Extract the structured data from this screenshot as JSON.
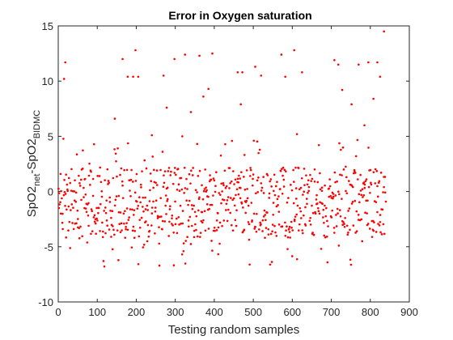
{
  "chart_data": {
    "type": "scatter",
    "title": "Error in Oxygen saturation",
    "xlabel": "Testing random samples",
    "ylabel_main": "SpO2",
    "ylabel_sub1": "net",
    "ylabel_mid": "-SpO2",
    "ylabel_sub2": "BIDMC",
    "xlim": [
      0,
      900
    ],
    "ylim": [
      -10,
      15
    ],
    "xticks": [
      0,
      100,
      200,
      300,
      400,
      500,
      600,
      700,
      800,
      900
    ],
    "yticks": [
      -10,
      -5,
      0,
      5,
      10,
      15
    ],
    "grid": false,
    "marker_color": "#ff0000",
    "outliers": {
      "x": [
        15,
        18,
        165,
        178,
        192,
        198,
        205,
        270,
        278,
        298,
        325,
        340,
        362,
        372,
        385,
        395,
        460,
        468,
        472,
        505,
        520,
        572,
        582,
        605,
        612,
        625,
        708,
        718,
        728,
        752,
        770,
        785,
        795,
        808,
        818,
        825,
        835,
        145,
        240,
        318
      ],
      "y": [
        10.2,
        11.7,
        12.0,
        10.4,
        10.4,
        12.8,
        10.4,
        10.5,
        7.6,
        12.0,
        12.4,
        7.2,
        12.3,
        8.6,
        9.3,
        12.5,
        10.8,
        7.9,
        10.8,
        11.3,
        10.5,
        12.4,
        10.4,
        12.8,
        5.2,
        10.8,
        11.9,
        11.5,
        9.2,
        7.9,
        11.5,
        6.0,
        11.7,
        8.4,
        11.7,
        10.4,
        14.5,
        6.6,
        5.1,
        5.0
      ]
    },
    "dense_cluster": {
      "count": 800,
      "x_range": [
        0,
        840
      ],
      "core_range": [
        -4.2,
        2.2
      ],
      "tail_range": [
        -6.8,
        4.8
      ]
    }
  }
}
